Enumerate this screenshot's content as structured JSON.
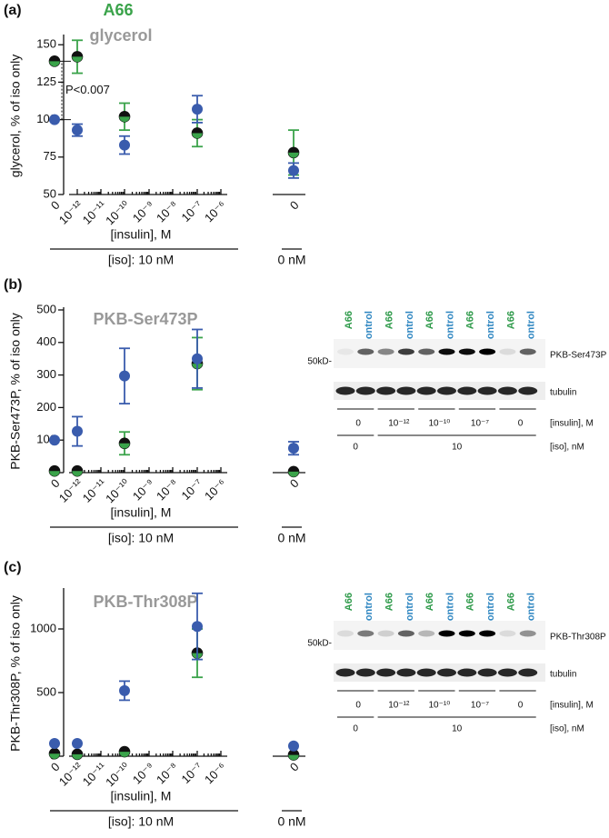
{
  "chart_data": [
    {
      "type": "scatter",
      "panel": "(a)",
      "title": "glycerol",
      "ylabel": "glycerol, % of iso only",
      "xlabel": "[insulin], M",
      "group_labels": [
        "[iso]: 10 nM",
        "0 nM"
      ],
      "categories": [
        "0",
        "10⁻¹²",
        "10⁻¹¹",
        "10⁻¹⁰",
        "10⁻⁹",
        "10⁻⁸",
        "10⁻⁷",
        "10⁻⁶",
        "0"
      ],
      "ylim": [
        50,
        155
      ],
      "yticks": [
        50,
        75,
        100,
        125,
        150
      ],
      "series": [
        {
          "name": "A66",
          "color": "#3aa34a",
          "values": [
            139,
            142,
            null,
            102,
            null,
            null,
            91,
            null,
            78
          ],
          "errors": [
            null,
            11,
            null,
            9,
            null,
            null,
            9,
            null,
            15
          ]
        },
        {
          "color": "#3a5cad",
          "values": [
            100,
            93,
            null,
            83,
            null,
            null,
            107,
            null,
            66
          ],
          "errors": [
            null,
            4,
            null,
            6,
            null,
            null,
            9,
            null,
            5
          ]
        }
      ],
      "annotation": "P<0.007"
    },
    {
      "type": "scatter",
      "panel": "(b)",
      "title": "PKB-Ser473P",
      "ylabel": "PKB-Ser473P, % of iso only",
      "xlabel": "[insulin], M",
      "group_labels": [
        "[iso]: 10 nM",
        "0 nM"
      ],
      "categories": [
        "0",
        "10⁻¹²",
        "10⁻¹¹",
        "10⁻¹⁰",
        "10⁻⁹",
        "10⁻⁸",
        "10⁻⁷",
        "10⁻⁶",
        "0"
      ],
      "ylim": [
        0,
        500
      ],
      "yticks": [
        0,
        100,
        200,
        300,
        400,
        500
      ],
      "series": [
        {
          "color": "#3aa34a",
          "values": [
            5,
            5,
            null,
            90,
            null,
            null,
            335,
            null,
            3
          ],
          "errors": [
            null,
            null,
            null,
            35,
            null,
            null,
            80,
            null,
            null
          ]
        },
        {
          "color": "#3a5cad",
          "values": [
            100,
            127,
            null,
            297,
            null,
            null,
            350,
            null,
            75
          ],
          "errors": [
            null,
            45,
            null,
            85,
            null,
            null,
            90,
            null,
            20
          ]
        }
      ]
    },
    {
      "type": "scatter",
      "panel": "(c)",
      "title": "PKB-Thr308P",
      "ylabel": "PKB-Thr308P, % of iso only",
      "xlabel": "[insulin], M",
      "group_labels": [
        "[iso]: 10 nM",
        "0 nM"
      ],
      "categories": [
        "0",
        "10⁻¹²",
        "10⁻¹¹",
        "10⁻¹⁰",
        "10⁻⁹",
        "10⁻⁸",
        "10⁻⁷",
        "10⁻⁶",
        "0"
      ],
      "ylim": [
        0,
        1300
      ],
      "yticks": [
        0,
        500,
        1000
      ],
      "series": [
        {
          "color": "#3aa34a",
          "values": [
            20,
            15,
            null,
            35,
            null,
            null,
            810,
            null,
            10
          ],
          "errors": [
            null,
            null,
            null,
            null,
            null,
            null,
            190,
            null,
            null
          ]
        },
        {
          "color": "#3a5cad",
          "values": [
            100,
            100,
            null,
            515,
            null,
            null,
            1020,
            null,
            80
          ],
          "errors": [
            null,
            null,
            null,
            75,
            null,
            null,
            260,
            null,
            null
          ]
        }
      ]
    }
  ],
  "blots": [
    {
      "lanes": [
        "A66",
        "control",
        "A66",
        "control",
        "A66",
        "control",
        "A66",
        "control",
        "A66",
        "control"
      ],
      "marker": "50kD-",
      "bands": [
        "PKB-Ser473P",
        "tubulin"
      ],
      "insulin_groups": [
        "0",
        "10⁻¹²",
        "10⁻¹⁰",
        "10⁻⁷",
        "0"
      ],
      "insulin_label": "[insulin], M",
      "iso_groups": [
        "0",
        "10"
      ],
      "iso_label": "[iso], nM"
    },
    {
      "lanes": [
        "A66",
        "control",
        "A66",
        "control",
        "A66",
        "control",
        "A66",
        "control",
        "A66",
        "control"
      ],
      "marker": "50kD-",
      "bands": [
        "PKB-Thr308P",
        "tubulin"
      ],
      "insulin_groups": [
        "0",
        "10⁻¹²",
        "10⁻¹⁰",
        "10⁻⁷",
        "0"
      ],
      "insulin_label": "[insulin], M",
      "iso_groups": [
        "0",
        "10"
      ],
      "iso_label": "[iso], nM"
    }
  ]
}
